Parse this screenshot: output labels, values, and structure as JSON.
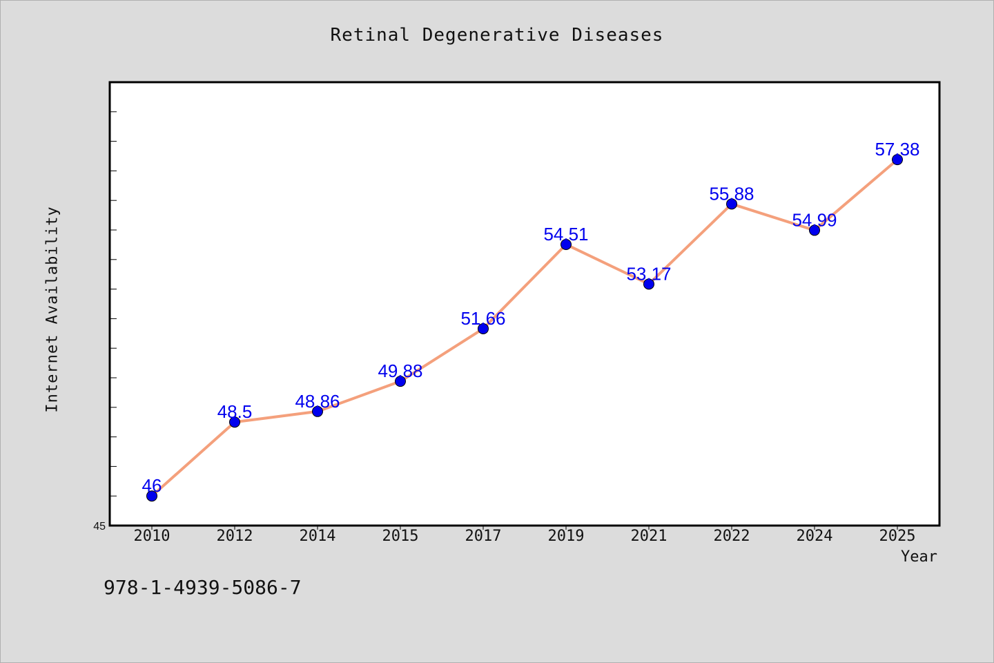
{
  "footer": {
    "code": "978-1-4939-5086-7"
  },
  "chart_data": {
    "type": "line",
    "title": "Retinal Degenerative Diseases",
    "xlabel": "Year",
    "ylabel": "Internet Availability",
    "categories": [
      "2010",
      "2012",
      "2014",
      "2015",
      "2017",
      "2019",
      "2021",
      "2022",
      "2024",
      "2025"
    ],
    "series": [
      {
        "values": [
          46,
          48.5,
          48.86,
          49.88,
          51.66,
          54.51,
          53.17,
          55.88,
          54.99,
          57.38
        ],
        "labels": [
          "46",
          "48.5",
          "48.86",
          "49.88",
          "51.66",
          "54.51",
          "53.17",
          "55.88",
          "54.99",
          "57.38"
        ],
        "line_color": "#f4a07c",
        "marker_color": "#0000ee",
        "label_color": "#0000ee"
      }
    ],
    "ylim": [
      45,
      60
    ],
    "y_tick_labels": [
      "45"
    ],
    "grid": false,
    "legend": "none"
  }
}
